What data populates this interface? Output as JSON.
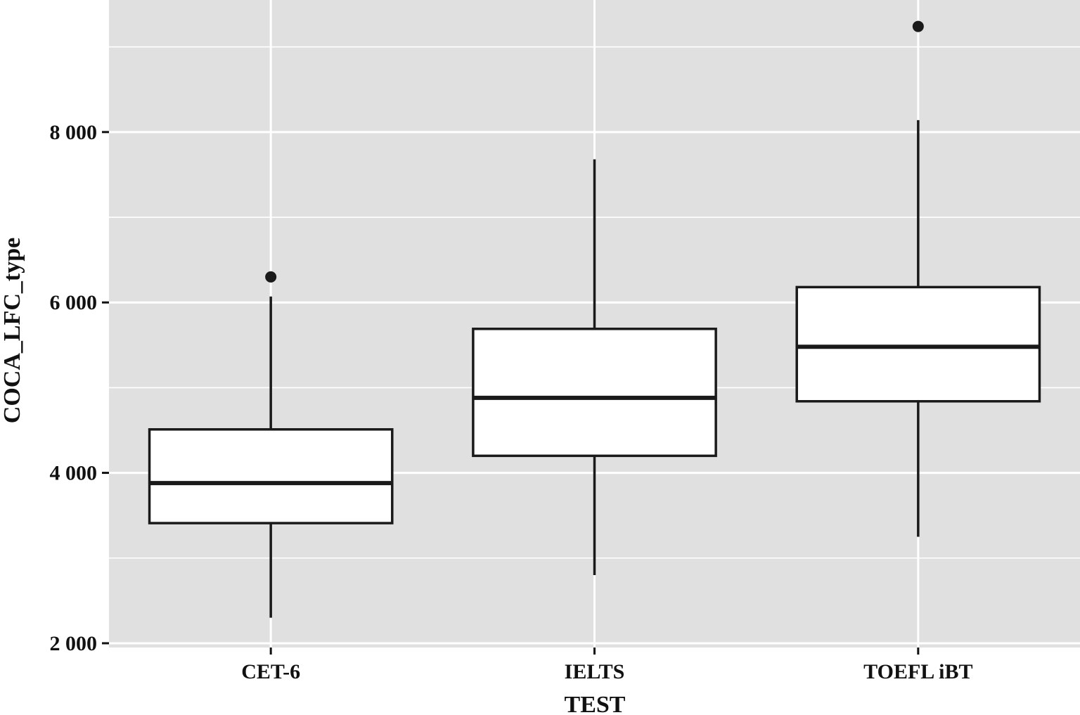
{
  "chart_data": {
    "type": "boxplot",
    "xlabel": "TEST",
    "ylabel": "COCA_LFC_type",
    "categories": [
      "CET-6",
      "IELTS",
      "TOEFL iBT"
    ],
    "ylim": [
      1950,
      9550
    ],
    "y_ticks": [
      2000,
      4000,
      6000,
      8000
    ],
    "y_tick_labels": [
      "2 000",
      "4 000",
      "6 000",
      "8 000"
    ],
    "grid": true,
    "legend": "none",
    "boxes": [
      {
        "category": "CET-6",
        "whisker_low": 2300,
        "q1": 3410,
        "median": 3880,
        "q3": 4510,
        "whisker_high": 6070,
        "outliers": [
          6300
        ]
      },
      {
        "category": "IELTS",
        "whisker_low": 2800,
        "q1": 4200,
        "median": 4880,
        "q3": 5690,
        "whisker_high": 7680,
        "outliers": []
      },
      {
        "category": "TOEFL iBT",
        "whisker_low": 3250,
        "q1": 4840,
        "median": 5480,
        "q3": 6180,
        "whisker_high": 8140,
        "outliers": [
          9240
        ]
      }
    ],
    "colors": {
      "panel": "#e0e0e0",
      "grid": "#ffffff",
      "box_fill": "#ffffff",
      "box_stroke": "#1a1a1a",
      "text": "#111111"
    }
  }
}
